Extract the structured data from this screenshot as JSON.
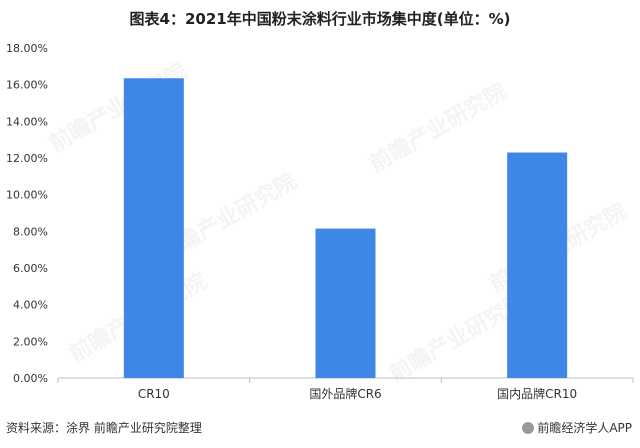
{
  "title": "图表4：2021年中国粉末涂料行业市场集中度(单位：%)",
  "source": "资料来源：涂界 前瞻产业研究院整理",
  "brand": "前瞻经济学人APP",
  "watermark": "前瞻产业研究院",
  "colors": {
    "bar": "#3F87E6",
    "axis": "#bfbfbf",
    "text": "#333333"
  },
  "chart_data": {
    "type": "bar",
    "title": "图表4：2021年中国粉末涂料行业市场集中度(单位：%)",
    "categories": [
      "CR10",
      "国外品牌CR6",
      "国内品牌CR10"
    ],
    "values": [
      16.35,
      8.15,
      12.3
    ],
    "ylim": [
      0,
      18
    ],
    "yticks": [
      0,
      2,
      4,
      6,
      8,
      10,
      12,
      14,
      16,
      18
    ],
    "ytick_labels": [
      "0.00%",
      "2.00%",
      "4.00%",
      "6.00%",
      "8.00%",
      "10.00%",
      "12.00%",
      "14.00%",
      "16.00%",
      "18.00%"
    ],
    "grid": false,
    "legend": "none"
  }
}
